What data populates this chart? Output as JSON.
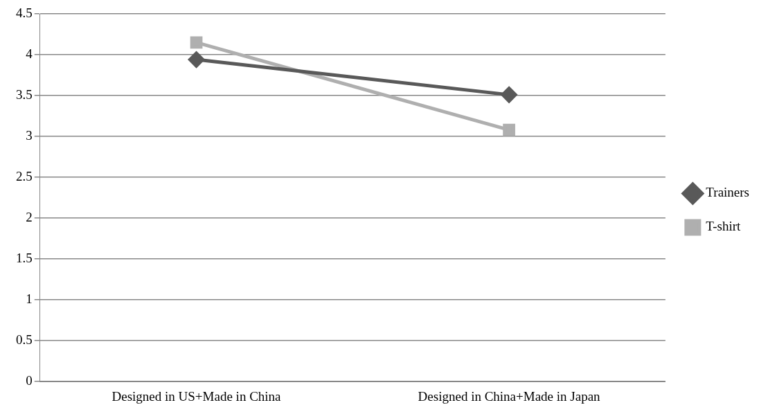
{
  "chart_data": {
    "type": "line",
    "categories": [
      "Designed in US+Made in China",
      "Designed in China+Made in Japan"
    ],
    "series": [
      {
        "name": "Trainers",
        "color": "#595959",
        "values": [
          3.94,
          3.51
        ],
        "marker": "diamond"
      },
      {
        "name": "T-shirt",
        "color": "#afafaf",
        "values": [
          4.15,
          3.08
        ],
        "marker": "square"
      }
    ],
    "ylim": [
      0,
      4.5
    ],
    "yticks": [
      0,
      0.5,
      1,
      1.5,
      2,
      2.5,
      3,
      3.5,
      4,
      4.5
    ],
    "grid": "y",
    "legend": "right"
  }
}
